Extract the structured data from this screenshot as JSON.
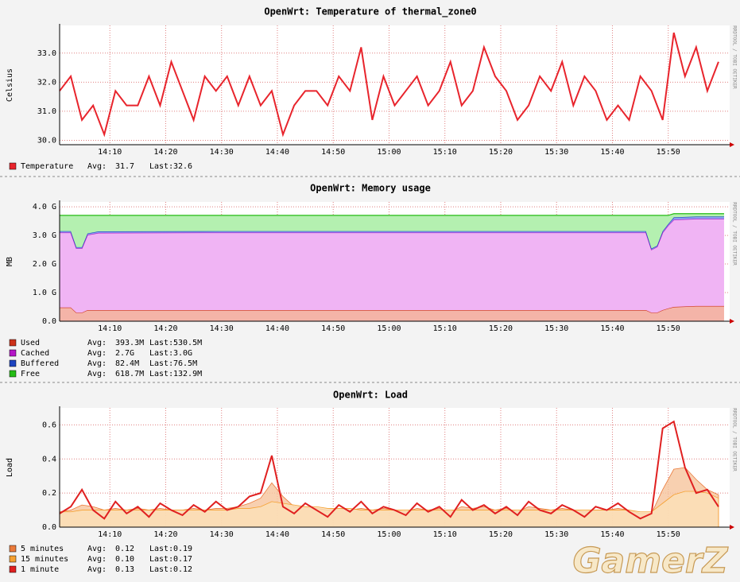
{
  "chart_data": [
    {
      "type": "line",
      "title": "OpenWrt: Temperature of thermal_zone0",
      "y_label": "Celsius",
      "side_label": "RRDTOOL / TOBI OETIKER",
      "xlim": [
        "14:01",
        "16:01"
      ],
      "xticks": [
        "14:10",
        "14:20",
        "14:30",
        "14:40",
        "14:50",
        "15:00",
        "15:10",
        "15:20",
        "15:30",
        "15:40",
        "15:50"
      ],
      "ylim": [
        29.85,
        33.95
      ],
      "yticks": [
        {
          "value": 30,
          "label": "30.0"
        },
        {
          "value": 31,
          "label": "31.0"
        },
        {
          "value": 32,
          "label": "32.0"
        },
        {
          "value": 33,
          "label": "33.0"
        }
      ],
      "grid": true,
      "avg_label": "Avg:",
      "last_label": "Last:",
      "x": [
        "14:01",
        "14:03",
        "14:05",
        "14:07",
        "14:09",
        "14:11",
        "14:13",
        "14:15",
        "14:17",
        "14:19",
        "14:21",
        "14:23",
        "14:25",
        "14:27",
        "14:29",
        "14:31",
        "14:33",
        "14:35",
        "14:37",
        "14:39",
        "14:41",
        "14:43",
        "14:45",
        "14:47",
        "14:49",
        "14:51",
        "14:53",
        "14:55",
        "14:57",
        "14:59",
        "15:01",
        "15:03",
        "15:05",
        "15:07",
        "15:09",
        "15:11",
        "15:13",
        "15:15",
        "15:17",
        "15:19",
        "15:21",
        "15:23",
        "15:25",
        "15:27",
        "15:29",
        "15:31",
        "15:33",
        "15:35",
        "15:37",
        "15:39",
        "15:41",
        "15:43",
        "15:45",
        "15:47",
        "15:49",
        "15:51",
        "15:53",
        "15:55",
        "15:57",
        "15:59"
      ],
      "series": [
        {
          "name": "Temperature",
          "color": "#e8242c",
          "avg": "31.7",
          "last": "32.6",
          "values": [
            31.7,
            32.2,
            30.7,
            31.2,
            30.2,
            31.7,
            31.2,
            31.2,
            32.2,
            31.2,
            32.7,
            31.7,
            30.7,
            32.2,
            31.7,
            32.2,
            31.2,
            32.2,
            31.2,
            31.7,
            30.2,
            31.2,
            31.7,
            31.7,
            31.2,
            32.2,
            31.7,
            33.2,
            30.7,
            32.2,
            31.2,
            31.7,
            32.2,
            31.2,
            31.7,
            32.7,
            31.2,
            31.7,
            33.2,
            32.2,
            31.7,
            30.7,
            31.2,
            32.2,
            31.7,
            32.7,
            31.2,
            32.2,
            31.7,
            30.7,
            31.2,
            30.7,
            32.2,
            31.7,
            30.7,
            33.7,
            32.2,
            33.2,
            31.7,
            32.7
          ]
        }
      ]
    },
    {
      "type": "stacked_area",
      "title": "OpenWrt: Memory usage",
      "y_label": "MB",
      "side_label": "RRDTOOL / TOBI OETIKER",
      "xlim": [
        "14:01",
        "16:01"
      ],
      "xticks": [
        "14:10",
        "14:20",
        "14:30",
        "14:40",
        "14:50",
        "15:00",
        "15:10",
        "15:20",
        "15:30",
        "15:40",
        "15:50"
      ],
      "ylim": [
        0,
        4.17
      ],
      "yticks": [
        {
          "value": 0,
          "label": "0.0"
        },
        {
          "value": 1,
          "label": "1.0 G"
        },
        {
          "value": 2,
          "label": "2.0 G"
        },
        {
          "value": 3,
          "label": "3.0 G"
        },
        {
          "value": 4,
          "label": "4.0 G"
        }
      ],
      "grid": true,
      "avg_label": "Avg:",
      "last_label": "Last:",
      "x": [
        "14:01",
        "14:03",
        "14:04",
        "14:05",
        "14:06",
        "14:08",
        "14:30",
        "15:00",
        "15:30",
        "15:46",
        "15:47",
        "15:48",
        "15:49",
        "15:50",
        "15:51",
        "15:55",
        "16:00"
      ],
      "series": [
        {
          "name": "Used",
          "color": "#cc3118",
          "fill": "#f4b4a8",
          "avg": "393.3M",
          "last": "530.5M",
          "values": [
            0.48,
            0.48,
            0.3,
            0.3,
            0.39,
            0.39,
            0.39,
            0.39,
            0.39,
            0.39,
            0.3,
            0.3,
            0.39,
            0.45,
            0.5,
            0.53,
            0.53
          ]
        },
        {
          "name": "Cached",
          "color": "#b415c7",
          "fill": "#f0b4f4",
          "avg": "2.7G",
          "last": "3.0G",
          "values": [
            2.62,
            2.62,
            2.25,
            2.25,
            2.63,
            2.7,
            2.71,
            2.71,
            2.71,
            2.71,
            2.2,
            2.3,
            2.71,
            2.9,
            3.05,
            3.05,
            3.05
          ]
        },
        {
          "name": "Buffered",
          "color": "#1d43c0",
          "fill": "#8aa0f0",
          "avg": "82.4M",
          "last": "76.5M",
          "values": [
            0.05,
            0.05,
            0.04,
            0.04,
            0.05,
            0.05,
            0.05,
            0.05,
            0.05,
            0.05,
            0.04,
            0.04,
            0.05,
            0.05,
            0.08,
            0.08,
            0.08
          ]
        },
        {
          "name": "Free",
          "color": "#24bc14",
          "fill": "#b4f0b0",
          "avg": "618.7M",
          "last": "132.9M",
          "values": [
            0.55,
            0.55,
            1.11,
            1.11,
            0.63,
            0.56,
            0.55,
            0.55,
            0.55,
            0.55,
            1.16,
            1.06,
            0.55,
            0.3,
            0.13,
            0.1,
            0.1
          ]
        }
      ]
    },
    {
      "type": "line",
      "title": "OpenWrt: Load",
      "y_label": "Load",
      "side_label": "RRDTOOL / TOBI OETIKER",
      "xlim": [
        "14:01",
        "16:01"
      ],
      "xticks": [
        "14:10",
        "14:20",
        "14:30",
        "14:40",
        "14:50",
        "15:00",
        "15:10",
        "15:20",
        "15:30",
        "15:40",
        "15:50"
      ],
      "ylim": [
        0,
        0.7
      ],
      "yticks": [
        {
          "value": 0,
          "label": "0.0"
        },
        0.2,
        0.4,
        0.6
      ],
      "grid": true,
      "avg_label": "Avg:",
      "last_label": "Last:",
      "x": [
        "14:01",
        "14:03",
        "14:05",
        "14:07",
        "14:09",
        "14:11",
        "14:13",
        "14:15",
        "14:17",
        "14:19",
        "14:21",
        "14:23",
        "14:25",
        "14:27",
        "14:29",
        "14:31",
        "14:33",
        "14:35",
        "14:37",
        "14:39",
        "14:41",
        "14:43",
        "14:45",
        "14:47",
        "14:49",
        "14:51",
        "14:53",
        "14:55",
        "14:57",
        "14:59",
        "15:01",
        "15:03",
        "15:05",
        "15:07",
        "15:09",
        "15:11",
        "15:13",
        "15:15",
        "15:17",
        "15:19",
        "15:21",
        "15:23",
        "15:25",
        "15:27",
        "15:29",
        "15:31",
        "15:33",
        "15:35",
        "15:37",
        "15:39",
        "15:41",
        "15:43",
        "15:45",
        "15:47",
        "15:49",
        "15:51",
        "15:53",
        "15:55",
        "15:57",
        "15:59"
      ],
      "series": [
        {
          "name": "5 minutes",
          "color": "#ea7a3a",
          "fill": "#f6c49c",
          "area": true,
          "avg": "0.12",
          "last": "0.19",
          "values": [
            0.09,
            0.1,
            0.13,
            0.12,
            0.1,
            0.11,
            0.1,
            0.11,
            0.1,
            0.11,
            0.1,
            0.1,
            0.11,
            0.1,
            0.11,
            0.11,
            0.12,
            0.14,
            0.17,
            0.26,
            0.18,
            0.12,
            0.12,
            0.11,
            0.1,
            0.11,
            0.1,
            0.11,
            0.1,
            0.11,
            0.1,
            0.09,
            0.11,
            0.1,
            0.11,
            0.09,
            0.12,
            0.11,
            0.12,
            0.1,
            0.11,
            0.09,
            0.12,
            0.11,
            0.1,
            0.11,
            0.1,
            0.09,
            0.1,
            0.1,
            0.11,
            0.1,
            0.08,
            0.08,
            0.22,
            0.34,
            0.35,
            0.28,
            0.22,
            0.19
          ]
        },
        {
          "name": "15 minutes",
          "color": "#f5a030",
          "fill": "#fbe0b8",
          "area": true,
          "avg": "0.10",
          "last": "0.17",
          "values": [
            0.09,
            0.09,
            0.1,
            0.1,
            0.1,
            0.1,
            0.1,
            0.1,
            0.1,
            0.1,
            0.1,
            0.1,
            0.1,
            0.1,
            0.1,
            0.1,
            0.11,
            0.11,
            0.12,
            0.15,
            0.14,
            0.13,
            0.12,
            0.12,
            0.11,
            0.11,
            0.11,
            0.1,
            0.1,
            0.1,
            0.1,
            0.1,
            0.1,
            0.1,
            0.1,
            0.1,
            0.1,
            0.1,
            0.1,
            0.1,
            0.1,
            0.1,
            0.1,
            0.1,
            0.1,
            0.1,
            0.1,
            0.1,
            0.1,
            0.1,
            0.1,
            0.1,
            0.09,
            0.09,
            0.14,
            0.19,
            0.21,
            0.21,
            0.2,
            0.17
          ]
        },
        {
          "name": "1 minute",
          "color": "#e02020",
          "area": false,
          "avg": "0.13",
          "last": "0.12",
          "values": [
            0.08,
            0.12,
            0.22,
            0.1,
            0.05,
            0.15,
            0.08,
            0.12,
            0.06,
            0.14,
            0.1,
            0.07,
            0.13,
            0.09,
            0.15,
            0.1,
            0.12,
            0.18,
            0.2,
            0.42,
            0.12,
            0.08,
            0.14,
            0.1,
            0.06,
            0.13,
            0.09,
            0.15,
            0.08,
            0.12,
            0.1,
            0.07,
            0.14,
            0.09,
            0.12,
            0.06,
            0.16,
            0.1,
            0.13,
            0.08,
            0.12,
            0.07,
            0.15,
            0.1,
            0.08,
            0.13,
            0.1,
            0.06,
            0.12,
            0.1,
            0.14,
            0.09,
            0.05,
            0.08,
            0.58,
            0.62,
            0.35,
            0.2,
            0.22,
            0.12
          ]
        }
      ]
    }
  ],
  "watermark": "GamerZ"
}
